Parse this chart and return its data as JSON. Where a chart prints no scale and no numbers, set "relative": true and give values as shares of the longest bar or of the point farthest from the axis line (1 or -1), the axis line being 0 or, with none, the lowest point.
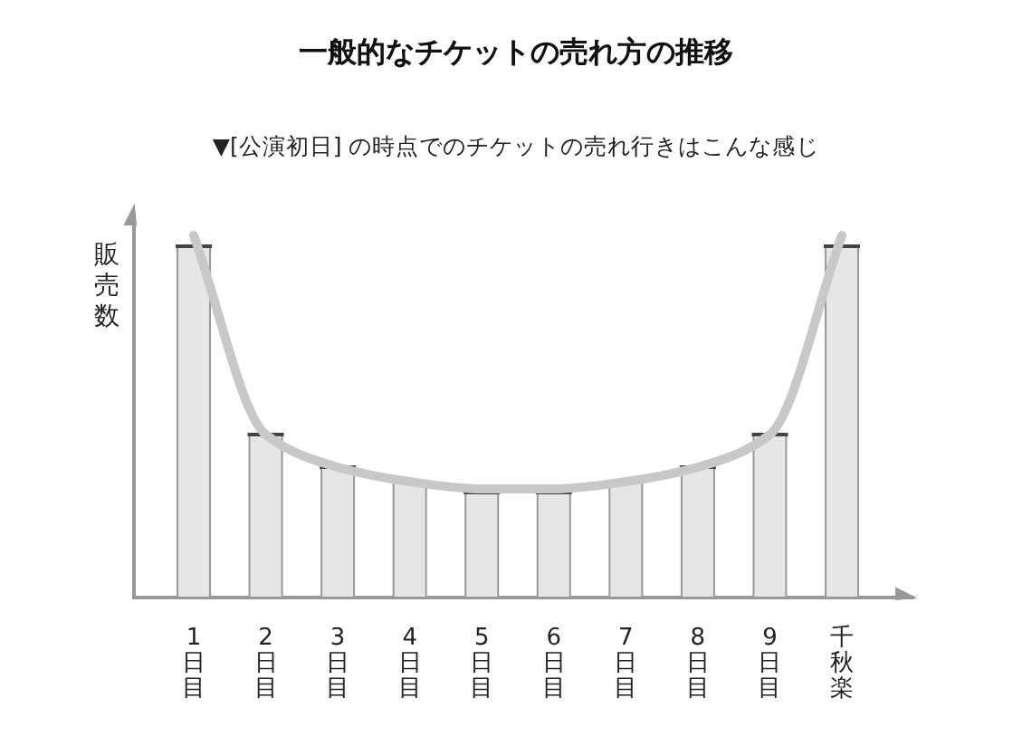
{
  "chart_data": {
    "type": "bar",
    "title": "一般的なチケットの売れ方の推移",
    "subtitle": "▼[公演初日] の時点でのチケットの売れ行きはこんな感じ",
    "ylabel": "販売数",
    "categories": [
      "1日目",
      "2日目",
      "3日目",
      "4日目",
      "5日目",
      "6日目",
      "7日目",
      "8日目",
      "9日目",
      "千秋楽"
    ],
    "relative": true,
    "series": [
      {
        "color": "#e6e6e6",
        "values": [
          0.97,
          0.45,
          0.36,
          0.32,
          0.29,
          0.29,
          0.32,
          0.36,
          0.45,
          0.97
        ]
      },
      {
        "type": "line",
        "color": "#c8c8c8",
        "values": [
          1,
          0.45,
          0.36,
          0.32,
          0.3,
          0.3,
          0.32,
          0.36,
          0.45,
          1
        ]
      }
    ]
  }
}
